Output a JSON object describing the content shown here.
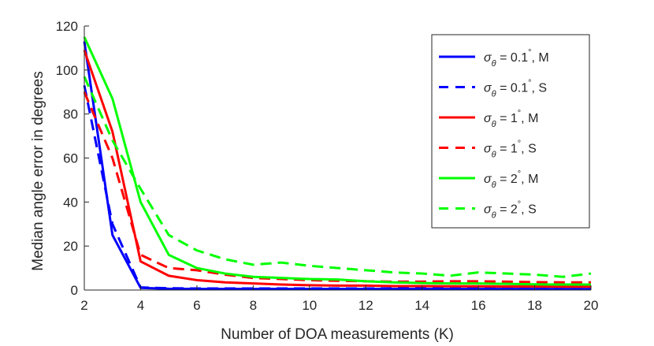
{
  "chart_data": {
    "type": "line",
    "title": "",
    "xlabel": "Number of DOA measurements (K)",
    "ylabel": "Median angle error in degrees",
    "xlim": [
      2,
      20
    ],
    "ylim": [
      0,
      120
    ],
    "xticks": [
      2,
      4,
      6,
      8,
      10,
      12,
      14,
      16,
      18,
      20
    ],
    "yticks": [
      0,
      20,
      40,
      60,
      80,
      100,
      120
    ],
    "grid": false,
    "legend_position": "top-right",
    "x": [
      2,
      3,
      4,
      5,
      6,
      7,
      8,
      9,
      10,
      11,
      12,
      13,
      14,
      15,
      16,
      17,
      18,
      19,
      20
    ],
    "series": [
      {
        "name": "σθ = 0.1°, M",
        "legend": {
          "sigma": "σ",
          "sub": "θ",
          "value": " = 0.1",
          "deg": "°",
          "suffix": ", M"
        },
        "color": "#0000ff",
        "dash": "solid",
        "values": [
          113,
          25,
          1,
          0.6,
          0.5,
          0.5,
          0.5,
          0.5,
          0.5,
          0.5,
          0.5,
          0.5,
          0.5,
          0.5,
          0.5,
          0.5,
          0.5,
          0.5,
          0.5
        ]
      },
      {
        "name": "σθ = 0.1°, S",
        "legend": {
          "sigma": "σ",
          "sub": "θ",
          "value": " = 0.1",
          "deg": "°",
          "suffix": ", S"
        },
        "color": "#0000ff",
        "dash": "dashed",
        "values": [
          93,
          30,
          1.2,
          0.8,
          0.7,
          0.7,
          0.7,
          0.7,
          0.7,
          0.7,
          0.7,
          0.7,
          0.7,
          0.7,
          0.7,
          0.7,
          0.7,
          0.7,
          0.7
        ]
      },
      {
        "name": "σθ = 1°, M",
        "legend": {
          "sigma": "σ",
          "sub": "θ",
          "value": " = 1",
          "deg": "°",
          "suffix": ", M"
        },
        "color": "#ff0000",
        "dash": "solid",
        "values": [
          109,
          72,
          13,
          6.5,
          4.5,
          3.5,
          3,
          2.5,
          2.2,
          2,
          2,
          1.8,
          1.8,
          1.7,
          1.7,
          1.6,
          1.6,
          1.5,
          1.5
        ]
      },
      {
        "name": "σθ = 1°, S",
        "legend": {
          "sigma": "σ",
          "sub": "θ",
          "value": " = 1",
          "deg": "°",
          "suffix": ", S"
        },
        "color": "#ff0000",
        "dash": "dashed",
        "values": [
          90,
          60,
          16,
          10,
          9,
          7,
          5.5,
          5,
          4.5,
          4.2,
          4,
          3.8,
          3.8,
          4,
          4,
          3.8,
          3.6,
          3.5,
          3.5
        ]
      },
      {
        "name": "σθ = 2°, M",
        "legend": {
          "sigma": "σ",
          "sub": "θ",
          "value": " = 2",
          "deg": "°",
          "suffix": ", M"
        },
        "color": "#00ff00",
        "dash": "solid",
        "values": [
          115,
          87,
          40,
          16,
          10,
          7.5,
          6,
          5.5,
          5,
          4.8,
          4,
          3.5,
          3.2,
          3,
          3,
          2.8,
          2.6,
          2.5,
          2.5
        ]
      },
      {
        "name": "σθ = 2°, S",
        "legend": {
          "sigma": "σ",
          "sub": "θ",
          "value": " = 2",
          "deg": "°",
          "suffix": ", S"
        },
        "color": "#00ff00",
        "dash": "dashed",
        "values": [
          97,
          68,
          46,
          25,
          18,
          14,
          11.5,
          12.5,
          11,
          10,
          9,
          8,
          7.5,
          6.5,
          8,
          7.5,
          7,
          6,
          7.5
        ]
      }
    ]
  }
}
